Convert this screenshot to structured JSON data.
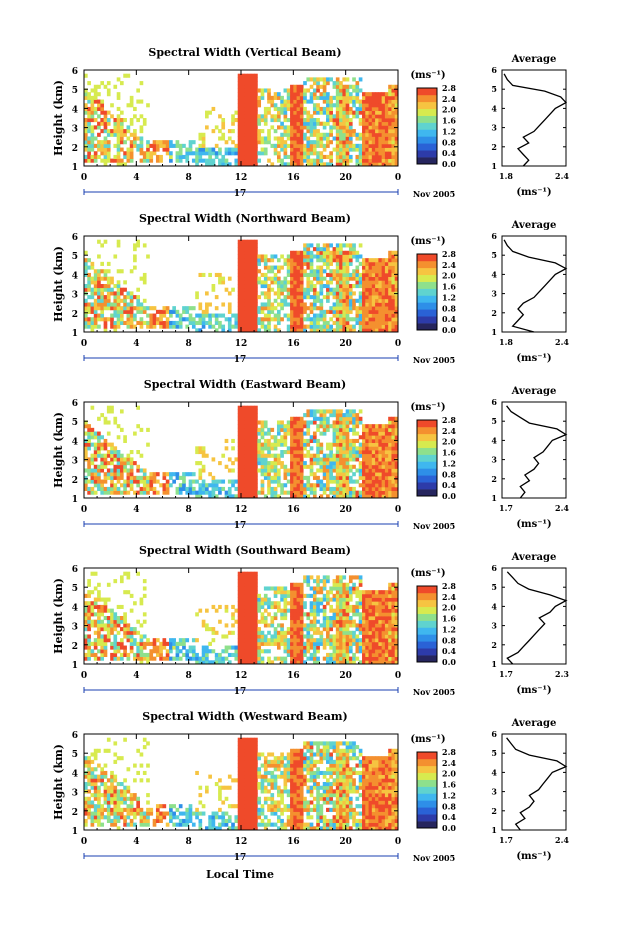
{
  "xlabel": "Local Time",
  "date_label": "Nov 2005",
  "day_label": "17",
  "cb_unit": "(ms⁻¹)",
  "avg_title": "Average",
  "avg_unit": "(ms⁻¹)",
  "x_ticks": [
    "0",
    "4",
    "8",
    "12",
    "16",
    "20",
    "0"
  ],
  "y_ticks": [
    "1",
    "2",
    "3",
    "4",
    "5",
    "6"
  ],
  "cb_ticks": [
    "0.0",
    "0.4",
    "0.8",
    "1.2",
    "1.6",
    "2.0",
    "2.4",
    "2.8"
  ],
  "colormap": [
    "#26255e",
    "#2d3ba9",
    "#2a62d6",
    "#2e8fe8",
    "#3fb7ef",
    "#5fd3cf",
    "#8ee08c",
    "#d7ea4f",
    "#f6c441",
    "#f4902f",
    "#ef4a2a"
  ],
  "chart_data": [
    {
      "type": "heatmap",
      "title": "Spectral Width (Vertical Beam)",
      "ylabel": "Height (km)",
      "xlim": [
        0,
        24
      ],
      "ylim": [
        1,
        6
      ],
      "colorbar_range": [
        0.0,
        2.8
      ],
      "avg": {
        "xticks": [
          "1.8",
          "2.4"
        ],
        "xlim": [
          1.8,
          2.4
        ],
        "x": [
          2.0,
          2.05,
          2.0,
          1.95,
          2.05,
          2.0,
          2.1,
          2.15,
          2.2,
          2.25,
          2.3,
          2.4,
          2.35,
          2.2,
          1.9,
          1.85,
          1.82
        ],
        "y": [
          1.0,
          1.3,
          1.6,
          1.9,
          2.2,
          2.5,
          2.8,
          3.1,
          3.4,
          3.7,
          4.0,
          4.3,
          4.6,
          4.9,
          5.2,
          5.5,
          5.8
        ]
      }
    },
    {
      "type": "heatmap",
      "title": "Spectral Width (Northward Beam)",
      "ylabel": "Height (km)",
      "xlim": [
        0,
        24
      ],
      "ylim": [
        1,
        6
      ],
      "colorbar_range": [
        0.0,
        2.8
      ],
      "avg": {
        "xticks": [
          "1.8",
          "2.4"
        ],
        "xlim": [
          1.8,
          2.4
        ],
        "x": [
          2.1,
          1.9,
          1.95,
          2.0,
          1.95,
          2.0,
          2.1,
          2.15,
          2.2,
          2.25,
          2.3,
          2.4,
          2.3,
          2.05,
          1.9,
          1.85,
          1.82
        ],
        "y": [
          1.0,
          1.3,
          1.6,
          1.9,
          2.2,
          2.5,
          2.8,
          3.1,
          3.4,
          3.7,
          4.0,
          4.3,
          4.6,
          4.9,
          5.2,
          5.5,
          5.8
        ]
      }
    },
    {
      "type": "heatmap",
      "title": "Spectral Width (Eastward Beam)",
      "ylabel": "Height (km)",
      "xlim": [
        0,
        24
      ],
      "ylim": [
        1,
        6
      ],
      "colorbar_range": [
        0.0,
        2.8
      ],
      "avg": {
        "xticks": [
          "1.7",
          "2.4"
        ],
        "xlim": [
          1.7,
          2.4
        ],
        "x": [
          1.9,
          1.95,
          1.9,
          2.0,
          1.95,
          2.05,
          2.1,
          2.05,
          2.15,
          2.2,
          2.25,
          2.4,
          2.3,
          2.0,
          1.9,
          1.8,
          1.75
        ],
        "y": [
          1.0,
          1.3,
          1.6,
          1.9,
          2.2,
          2.5,
          2.8,
          3.1,
          3.4,
          3.7,
          4.0,
          4.3,
          4.6,
          4.9,
          5.2,
          5.5,
          5.8
        ]
      }
    },
    {
      "type": "heatmap",
      "title": "Spectral Width (Southward Beam)",
      "ylabel": "Height (km)",
      "xlim": [
        0,
        24
      ],
      "ylim": [
        1,
        6
      ],
      "colorbar_range": [
        0.0,
        2.8
      ],
      "avg": {
        "xticks": [
          "1.7",
          "2.3"
        ],
        "xlim": [
          1.7,
          2.3
        ],
        "x": [
          1.8,
          1.75,
          1.85,
          1.9,
          1.95,
          2.0,
          2.05,
          2.1,
          2.05,
          2.15,
          2.2,
          2.3,
          2.15,
          1.95,
          1.85,
          1.8,
          1.75
        ],
        "y": [
          1.0,
          1.3,
          1.6,
          1.9,
          2.2,
          2.5,
          2.8,
          3.1,
          3.4,
          3.7,
          4.0,
          4.3,
          4.6,
          4.9,
          5.2,
          5.5,
          5.8
        ]
      }
    },
    {
      "type": "heatmap",
      "title": "Spectral Width (Westward Beam)",
      "ylabel": "Height (km)",
      "xlim": [
        0,
        24
      ],
      "ylim": [
        1,
        6
      ],
      "colorbar_range": [
        0.0,
        2.8
      ],
      "avg": {
        "xticks": [
          "1.7",
          "2.4"
        ],
        "xlim": [
          1.7,
          2.4
        ],
        "x": [
          1.9,
          1.85,
          1.95,
          1.9,
          2.0,
          2.05,
          2.0,
          2.1,
          2.15,
          2.2,
          2.25,
          2.4,
          2.3,
          2.0,
          1.85,
          1.8,
          1.75
        ],
        "y": [
          1.0,
          1.3,
          1.6,
          1.9,
          2.2,
          2.5,
          2.8,
          3.1,
          3.4,
          3.7,
          4.0,
          4.3,
          4.6,
          4.9,
          5.2,
          5.5,
          5.8
        ]
      }
    }
  ]
}
